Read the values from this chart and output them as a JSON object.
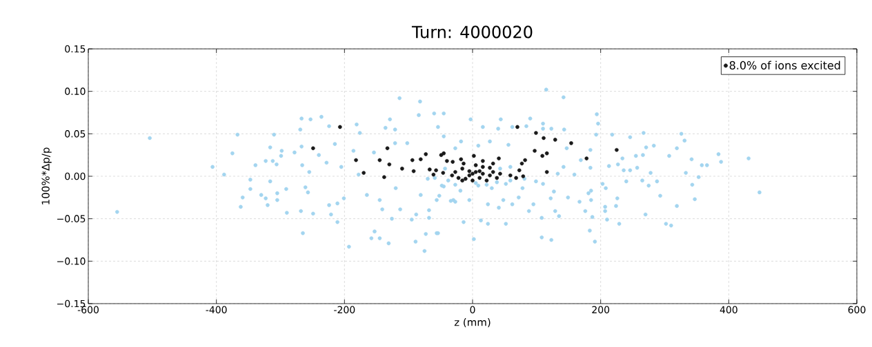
{
  "chart_data": {
    "type": "scatter",
    "title": "Turn: 4000020",
    "xlabel": "z (mm)",
    "ylabel": "100%*Δp/p",
    "xlim": [
      -600,
      600
    ],
    "ylim": [
      -0.15,
      0.15
    ],
    "xticks": [
      -600,
      -400,
      -200,
      0,
      200,
      400,
      600
    ],
    "yticks": [
      {
        "value": -0.15,
        "label": "−0.15"
      },
      {
        "value": -0.1,
        "label": "−0.10"
      },
      {
        "value": -0.05,
        "label": "−0.05"
      },
      {
        "value": 0,
        "label": "0.00"
      },
      {
        "value": 0.05,
        "label": "0.05"
      },
      {
        "value": 0.1,
        "label": "0.10"
      },
      {
        "value": 0.15,
        "label": "0.15"
      }
    ],
    "grid": true,
    "legend": "top right",
    "series": [
      {
        "color": "#a3d5ef",
        "x": [
          -504,
          -555,
          -406,
          -388,
          -375,
          -367,
          -339,
          -323,
          -316,
          -312,
          -310,
          -298,
          -299,
          -306,
          -347,
          -347,
          -359,
          -362,
          -330,
          -323,
          -320,
          -316,
          -305,
          -305,
          -291,
          -290,
          -267,
          -253,
          -236,
          -269,
          -224,
          -267,
          -278,
          -240,
          -215,
          -266,
          -255,
          -228,
          -205,
          -261,
          -257,
          -224,
          -211,
          -221,
          -249,
          -268,
          -265,
          -211,
          -201,
          -193,
          -181,
          -176,
          -186,
          -178,
          -165,
          -158,
          -145,
          -153,
          -131,
          -141,
          -126,
          -145,
          -120,
          -129,
          -136,
          -114,
          -82,
          -84,
          -60,
          -45,
          -54,
          -121,
          -89,
          -75,
          -73,
          -54,
          -68,
          -95,
          -113,
          -88,
          -121,
          -102,
          -154,
          -59,
          -45,
          -52,
          -30,
          -3,
          44,
          90,
          16,
          40,
          62,
          84,
          -45,
          -18,
          27,
          56,
          -27,
          9,
          110,
          -70,
          -48,
          -19,
          9,
          30,
          52,
          78,
          99,
          110,
          -81,
          -56,
          -34,
          -5,
          24,
          48,
          72,
          95,
          -27,
          -68,
          -14,
          13,
          24,
          52,
          88,
          108,
          -56,
          2,
          41,
          62,
          -38,
          -27,
          5,
          22,
          38,
          59,
          81,
          -43,
          43,
          59,
          115,
          142,
          194,
          196,
          110,
          123,
          143,
          193,
          218,
          246,
          267,
          326,
          331,
          271,
          283,
          319,
          184,
          147,
          169,
          184,
          213,
          227,
          234,
          255,
          266,
          307,
          342,
          358,
          366,
          236,
          246,
          257,
          278,
          333,
          353,
          159,
          133,
          142,
          203,
          208,
          240,
          265,
          275,
          288,
          343,
          293,
          226,
          185,
          181,
          149,
          122,
          127,
          167,
          185,
          129,
          176,
          135,
          207,
          207,
          224,
          187,
          210,
          270,
          319,
          347,
          302,
          310,
          229,
          183,
          191,
          108,
          123,
          384,
          388,
          431,
          448
        ],
        "values": [
          0.045,
          -0.042,
          0.011,
          0.002,
          0.027,
          0.049,
          0.013,
          0.018,
          0.034,
          0.018,
          0.049,
          0.03,
          0.024,
          0.014,
          -0.004,
          -0.015,
          -0.025,
          -0.036,
          -0.022,
          -0.026,
          -0.034,
          -0.006,
          -0.02,
          -0.028,
          -0.015,
          -0.043,
          0.068,
          0.067,
          0.07,
          0.055,
          0.059,
          0.035,
          0.028,
          0.025,
          0.038,
          0.013,
          0.005,
          0.016,
          0.011,
          -0.013,
          -0.019,
          -0.034,
          -0.032,
          -0.045,
          -0.044,
          -0.041,
          -0.067,
          -0.054,
          -0.026,
          -0.083,
          0.061,
          0.051,
          0.03,
          0.002,
          -0.022,
          -0.073,
          -0.073,
          -0.065,
          -0.079,
          -0.039,
          -0.05,
          -0.028,
          -0.014,
          0.067,
          0.057,
          0.092,
          0.088,
          0.072,
          0.074,
          0.074,
          0.058,
          0.055,
          -0.077,
          -0.088,
          -0.068,
          -0.067,
          -0.049,
          -0.051,
          -0.039,
          -0.045,
          0.039,
          0.039,
          0.028,
          -0.002,
          -0.012,
          -0.023,
          -0.028,
          0.067,
          0.067,
          0.068,
          0.058,
          0.056,
          0.058,
          0.059,
          0.047,
          0.041,
          0.041,
          0.037,
          0.033,
          0.036,
          0.056,
          -0.003,
          -0.011,
          -0.017,
          -0.011,
          -0.014,
          -0.009,
          -0.014,
          -0.006,
          -0.009,
          -0.022,
          -0.028,
          -0.029,
          -0.028,
          -0.033,
          -0.028,
          -0.025,
          -0.033,
          -0.03,
          -0.04,
          -0.054,
          -0.052,
          -0.056,
          -0.056,
          -0.041,
          -0.049,
          -0.067,
          -0.074,
          -0.037,
          -0.033,
          -0.005,
          -0.01,
          -0.008,
          -0.01,
          -0.007,
          -0.005,
          -0.003,
          0.009,
          0.009,
          0.011,
          0.102,
          0.093,
          0.073,
          0.062,
          0.062,
          0.056,
          0.055,
          0.049,
          0.049,
          0.046,
          0.051,
          0.05,
          0.042,
          0.034,
          0.036,
          0.033,
          0.031,
          0.033,
          0.019,
          0.01,
          0.012,
          0.014,
          0.021,
          0.024,
          0.025,
          0.024,
          0.02,
          0.013,
          0.013,
          0.007,
          0.007,
          0.01,
          0.004,
          0.004,
          -0.001,
          0.002,
          0.003,
          0.011,
          -0.009,
          -0.014,
          -0.006,
          -0.005,
          -0.011,
          -0.006,
          -0.01,
          -0.023,
          -0.026,
          -0.017,
          -0.02,
          -0.025,
          -0.026,
          -0.018,
          -0.03,
          -0.028,
          -0.041,
          -0.041,
          -0.047,
          -0.036,
          -0.041,
          -0.035,
          -0.048,
          -0.051,
          -0.045,
          -0.035,
          -0.027,
          -0.056,
          -0.058,
          -0.056,
          -0.064,
          -0.077,
          -0.072,
          -0.075,
          0.026,
          0.017,
          0.021,
          -0.019
        ]
      },
      {
        "name": "8.0% of ions excited",
        "color": "#1a1a1a",
        "x": [
          -249,
          -207,
          -182,
          -170,
          -133,
          -145,
          -130,
          -138,
          -110,
          -94,
          -92,
          -81,
          -73,
          -67,
          -57,
          -49,
          -45,
          -40,
          -31,
          -46,
          -61,
          70,
          99,
          111,
          129,
          154,
          225,
          97,
          116,
          109,
          178,
          116,
          82,
          77,
          73,
          79,
          68,
          41,
          32,
          2,
          -18,
          -27,
          -16,
          -5,
          5,
          16,
          27,
          -22,
          -11,
          0,
          11,
          22,
          32,
          38,
          5,
          16,
          -5,
          0,
          11,
          -16,
          27,
          -32,
          43,
          59,
          -14,
          16
        ],
        "values": [
          0.033,
          0.058,
          0.019,
          0.004,
          0.033,
          0.019,
          0.014,
          -0.001,
          0.009,
          0.019,
          0.006,
          0.02,
          0.026,
          0.008,
          0.007,
          0.025,
          0.027,
          0.018,
          0.017,
          0.004,
          0.002,
          0.058,
          0.051,
          0.045,
          0.043,
          0.039,
          0.031,
          0.03,
          0.027,
          0.024,
          0.021,
          0.005,
          0.019,
          0.015,
          0.007,
          0.0,
          -0.002,
          0.021,
          0.015,
          0.024,
          0.02,
          0.005,
          0.009,
          0.006,
          0.005,
          0.003,
          0.001,
          -0.002,
          -0.003,
          -0.005,
          -0.002,
          -0.005,
          0.005,
          -0.002,
          0.013,
          0.011,
          0.001,
          0.003,
          0.006,
          -0.005,
          0.01,
          0.001,
          0.003,
          0.001,
          0.015,
          0.018
        ]
      }
    ]
  }
}
